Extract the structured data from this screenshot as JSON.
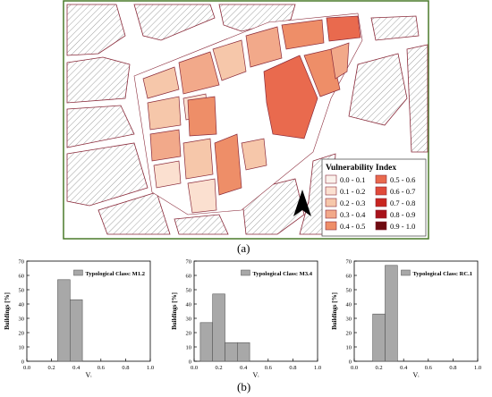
{
  "figure": {
    "panel_a_label": "(a)",
    "panel_b_label": "(b)"
  },
  "map": {
    "colors": {
      "frame": "#4a7a2a",
      "building_outline": "#8a2a3a",
      "hatch": "#9a9a9a",
      "street": "#ffffff",
      "bg": "#ffffff"
    },
    "legend": {
      "title": "Vulnerability Index",
      "classes": [
        {
          "label": "0.0 - 0.1",
          "color": "#fbf2ec"
        },
        {
          "label": "0.1 - 0.2",
          "color": "#fbe0d0"
        },
        {
          "label": "0.2 - 0.3",
          "color": "#f6c7aa"
        },
        {
          "label": "0.3 - 0.4",
          "color": "#f2a98a"
        },
        {
          "label": "0.4 - 0.5",
          "color": "#ee8e68"
        },
        {
          "label": "0.5 - 0.6",
          "color": "#e96a4e"
        },
        {
          "label": "0.6 - 0.7",
          "color": "#e04a3a"
        },
        {
          "label": "0.7 - 0.8",
          "color": "#c8251f"
        },
        {
          "label": "0.8 - 0.9",
          "color": "#a8121a"
        },
        {
          "label": "0.9 - 1.0",
          "color": "#6e0a10"
        }
      ]
    },
    "north_arrow": "north-arrow-icon"
  },
  "chart_data": [
    {
      "type": "bar",
      "x": [
        0.3,
        0.4
      ],
      "bin_width": 0.1,
      "values": [
        57,
        43
      ],
      "legend": "Typological Class: M1.2",
      "xlabel": "Vᵢ",
      "ylabel": "Buildings [%]",
      "xlim": [
        0.0,
        1.0
      ],
      "ylim": [
        0,
        70
      ],
      "xticks": [
        "0.0",
        "0.2",
        "0.4",
        "0.6",
        "0.8",
        "1.0"
      ],
      "yticks": [
        "0",
        "10",
        "20",
        "30",
        "40",
        "50",
        "60",
        "70"
      ],
      "bar_color": "#a8a8a8"
    },
    {
      "type": "bar",
      "x": [
        0.1,
        0.2,
        0.3,
        0.4
      ],
      "bin_width": 0.1,
      "values": [
        27,
        47,
        13,
        13
      ],
      "legend": "Typological Class: M3.4",
      "xlabel": "Vᵢ",
      "ylabel": "Buildings [%]",
      "xlim": [
        0.0,
        1.0
      ],
      "ylim": [
        0,
        70
      ],
      "xticks": [
        "0.0",
        "0.2",
        "0.4",
        "0.6",
        "0.8",
        "1.0"
      ],
      "yticks": [
        "0",
        "10",
        "20",
        "30",
        "40",
        "50",
        "60",
        "70"
      ],
      "bar_color": "#a8a8a8"
    },
    {
      "type": "bar",
      "x": [
        0.2,
        0.3
      ],
      "bin_width": 0.1,
      "values": [
        33,
        67
      ],
      "legend": "Typological Class: RC.1",
      "xlabel": "Vᵢ",
      "ylabel": "Buildings [%]",
      "xlim": [
        0.0,
        1.0
      ],
      "ylim": [
        0,
        70
      ],
      "xticks": [
        "0.0",
        "0.2",
        "0.4",
        "0.6",
        "0.8",
        "1.0"
      ],
      "yticks": [
        "0",
        "10",
        "20",
        "30",
        "40",
        "50",
        "60",
        "70"
      ],
      "bar_color": "#a8a8a8"
    }
  ]
}
